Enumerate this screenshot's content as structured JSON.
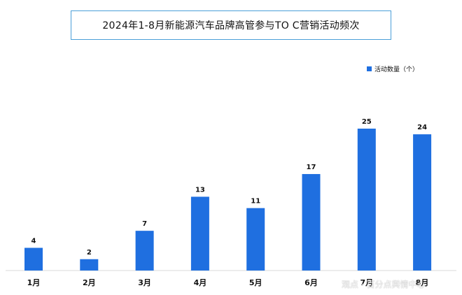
{
  "chart_data": {
    "type": "bar",
    "title": "2024年1-8月新能源汽车品牌高管参与TO C营销活动频次",
    "categories": [
      "1月",
      "2月",
      "3月",
      "4月",
      "5月",
      "6月",
      "7月",
      "8月"
    ],
    "series": [
      {
        "name": "活动数量（个）",
        "values": [
          4,
          2,
          7,
          13,
          11,
          17,
          25,
          24
        ],
        "color": "#1f6fe0"
      }
    ],
    "ylim": [
      0,
      25
    ],
    "grid": false,
    "legend_position": "top-right",
    "data_labels": true
  },
  "watermark": "观点 · 百分点舆情中心"
}
